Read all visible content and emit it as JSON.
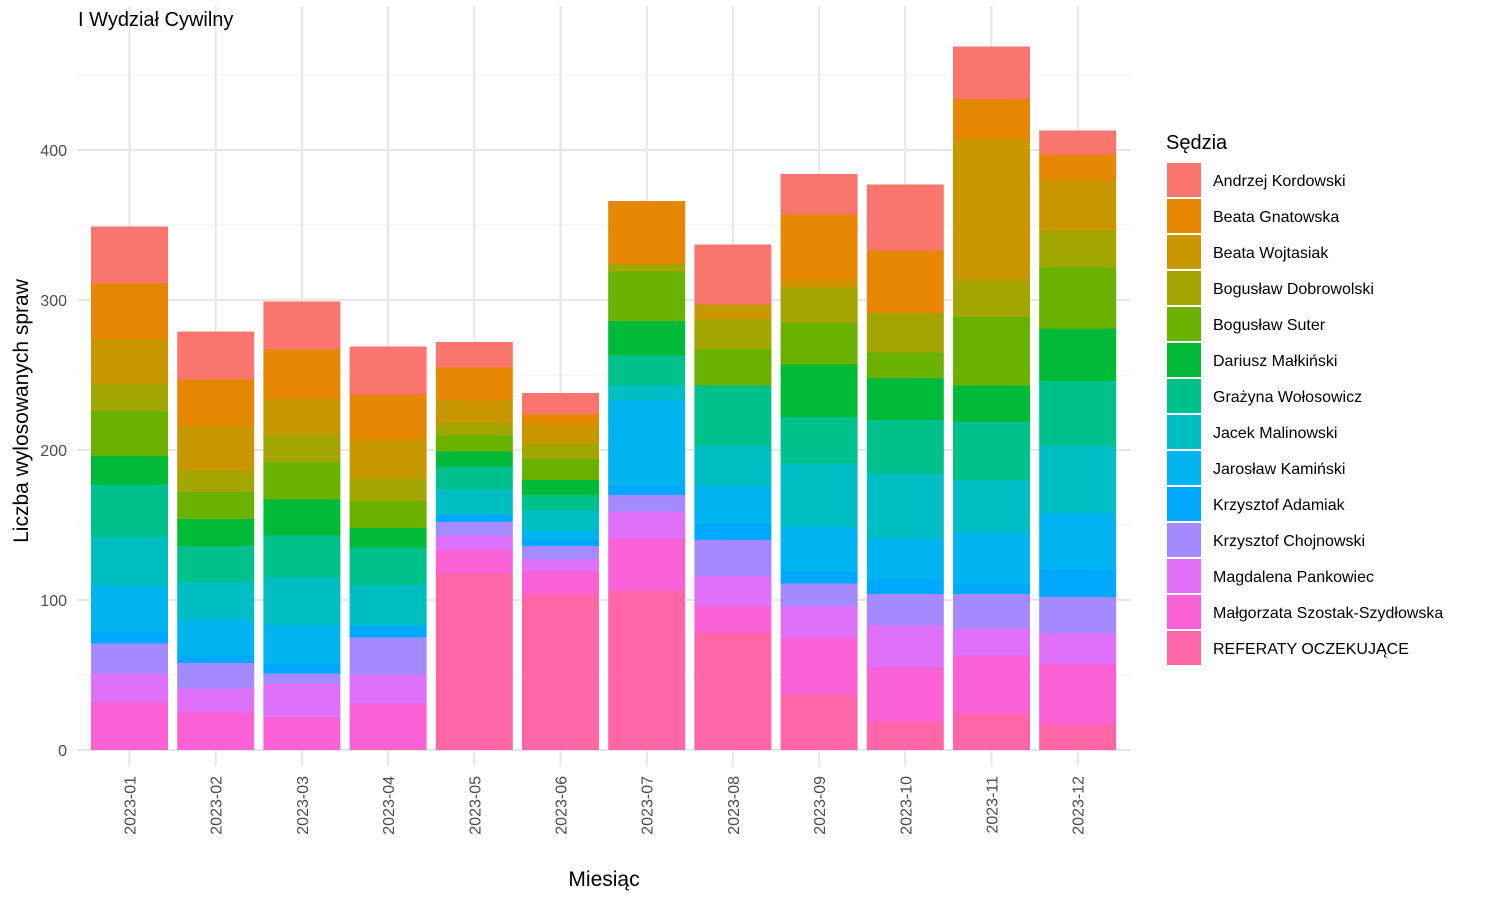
{
  "chart_data": {
    "type": "bar",
    "stacked": true,
    "title": "I Wydział Cywilny",
    "xlabel": "Miesiąc",
    "ylabel": "Liczba wylosowanych spraw",
    "ylim": [
      0,
      470
    ],
    "yticks": [
      0,
      100,
      200,
      300,
      400
    ],
    "ytick_labels": [
      "0",
      "100",
      "200",
      "300",
      "400"
    ],
    "grid": true,
    "legend_title": "Sędzia",
    "legend_position": "right",
    "categories": [
      "2023-01",
      "2023-02",
      "2023-03",
      "2023-04",
      "2023-05",
      "2023-06",
      "2023-07",
      "2023-08",
      "2023-09",
      "2023-10",
      "2023-11",
      "2023-12"
    ],
    "series": [
      {
        "name": "Andrzej Kordowski",
        "color": "#F8766D",
        "values": [
          38,
          32,
          32,
          32,
          17,
          14,
          0,
          40,
          27,
          44,
          35,
          16
        ]
      },
      {
        "name": "Beata Gnatowska",
        "color": "#E58700",
        "values": [
          37,
          31,
          33,
          30,
          22,
          7,
          42,
          0,
          44,
          42,
          27,
          17
        ]
      },
      {
        "name": "Beata Wojtasiak",
        "color": "#C99800",
        "values": [
          30,
          30,
          24,
          26,
          15,
          13,
          0,
          10,
          5,
          0,
          94,
          34
        ]
      },
      {
        "name": "Bogusław Dobrowolski",
        "color": "#A3A500",
        "values": [
          18,
          14,
          18,
          15,
          8,
          10,
          5,
          20,
          23,
          26,
          24,
          24
        ]
      },
      {
        "name": "Bogusław Suter",
        "color": "#6BB100",
        "values": [
          30,
          18,
          25,
          18,
          11,
          14,
          33,
          24,
          28,
          17,
          46,
          41
        ]
      },
      {
        "name": "Dariusz Małkiński",
        "color": "#00BA38",
        "values": [
          19,
          18,
          24,
          13,
          10,
          10,
          23,
          0,
          35,
          28,
          24,
          35
        ]
      },
      {
        "name": "Grażyna Wołosowicz",
        "color": "#00C08B",
        "values": [
          35,
          24,
          28,
          25,
          15,
          10,
          20,
          40,
          31,
          36,
          39,
          43
        ]
      },
      {
        "name": "Jacek Malinowski",
        "color": "#00BFC4",
        "values": [
          33,
          25,
          32,
          27,
          17,
          14,
          10,
          27,
          42,
          43,
          35,
          45
        ]
      },
      {
        "name": "Jarosław Kamiński",
        "color": "#00B4F0",
        "values": [
          30,
          24,
          26,
          0,
          0,
          6,
          57,
          25,
          30,
          27,
          35,
          38
        ]
      },
      {
        "name": "Krzysztof Adamiak",
        "color": "#00A9FF",
        "values": [
          8,
          5,
          6,
          8,
          5,
          4,
          6,
          11,
          8,
          10,
          6,
          18
        ]
      },
      {
        "name": "Krzysztof Chojnowski",
        "color": "#A58AFF",
        "values": [
          20,
          17,
          7,
          25,
          9,
          9,
          11,
          24,
          15,
          21,
          23,
          24
        ]
      },
      {
        "name": "Magdalena Pankowiec",
        "color": "#DF70F8",
        "values": [
          19,
          16,
          22,
          19,
          10,
          8,
          18,
          20,
          21,
          28,
          18,
          21
        ]
      },
      {
        "name": "Małgorzata Szostak-Szydłowska",
        "color": "#FB61D7",
        "values": [
          32,
          25,
          22,
          30,
          15,
          15,
          35,
          18,
          38,
          36,
          39,
          40
        ]
      },
      {
        "name": "REFERATY OCZEKUJĄCE",
        "color": "#FF66A8",
        "values": [
          0,
          0,
          0,
          1,
          118,
          104,
          106,
          78,
          37,
          19,
          24,
          17
        ]
      }
    ]
  }
}
